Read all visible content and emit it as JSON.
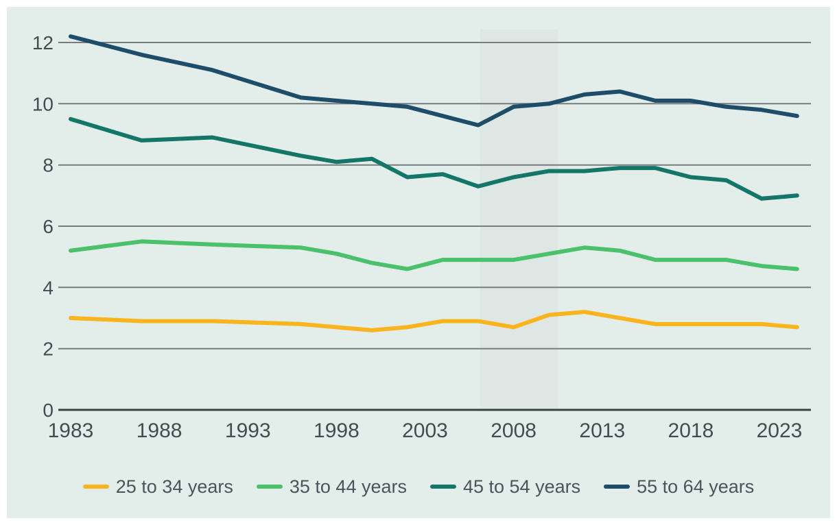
{
  "chart": {
    "page_background": "#ffffff",
    "panel_background": "#e3eeeb",
    "recession_band_color": "#dee7e3",
    "gridline_color": "#767c80",
    "axis_line_color": "#3a4145",
    "tick_label_color": "#454c51",
    "legend_text_color": "#4a545b"
  },
  "chart_data": {
    "type": "line",
    "title": "",
    "x": [
      1983,
      1987,
      1991,
      1996,
      1998,
      2000,
      2002,
      2004,
      2006,
      2008,
      2010,
      2012,
      2014,
      2016,
      2018,
      2020,
      2022,
      2024
    ],
    "series": [
      {
        "name": "25 to 34 years",
        "color": "#f9b41f",
        "values": [
          3.0,
          2.9,
          2.9,
          2.8,
          2.7,
          2.6,
          2.7,
          2.9,
          2.9,
          2.7,
          3.1,
          3.2,
          3.0,
          2.8,
          2.8,
          2.8,
          2.8,
          2.7
        ]
      },
      {
        "name": "35 to 44 years",
        "color": "#4ac16a",
        "values": [
          5.2,
          5.5,
          5.4,
          5.3,
          5.1,
          4.8,
          4.6,
          4.9,
          4.9,
          4.9,
          5.1,
          5.3,
          5.2,
          4.9,
          4.9,
          4.9,
          4.7,
          4.6
        ]
      },
      {
        "name": "45 to 54 years",
        "color": "#137669",
        "values": [
          9.5,
          8.8,
          8.9,
          8.3,
          8.1,
          8.2,
          7.6,
          7.7,
          7.3,
          7.6,
          7.8,
          7.8,
          7.9,
          7.9,
          7.6,
          7.5,
          6.9,
          7.0
        ]
      },
      {
        "name": "55 to 64 years",
        "color": "#1d4d68",
        "values": [
          12.2,
          11.6,
          11.1,
          10.2,
          10.1,
          10.0,
          9.9,
          9.6,
          9.3,
          9.9,
          10.0,
          10.3,
          10.4,
          10.1,
          10.1,
          9.9,
          9.8,
          9.6
        ]
      }
    ],
    "x_tick_labels": [
      "1983",
      "1988",
      "1993",
      "1998",
      "2003",
      "2008",
      "2013",
      "2018",
      "2023"
    ],
    "x_tick_years": [
      1983,
      1988,
      1993,
      1998,
      2003,
      2008,
      2013,
      2018,
      2023
    ],
    "y_tick_labels": [
      "0",
      "2",
      "4",
      "6",
      "8",
      "10",
      "12"
    ],
    "y_tick_values": [
      0,
      2,
      4,
      6,
      8,
      10,
      12
    ],
    "xlim": [
      1983,
      2024
    ],
    "ylim": [
      0,
      12
    ],
    "grid": true,
    "legend_position": "bottom",
    "shaded_band": {
      "x_from": 2006.1,
      "x_to": 2010.5
    }
  }
}
